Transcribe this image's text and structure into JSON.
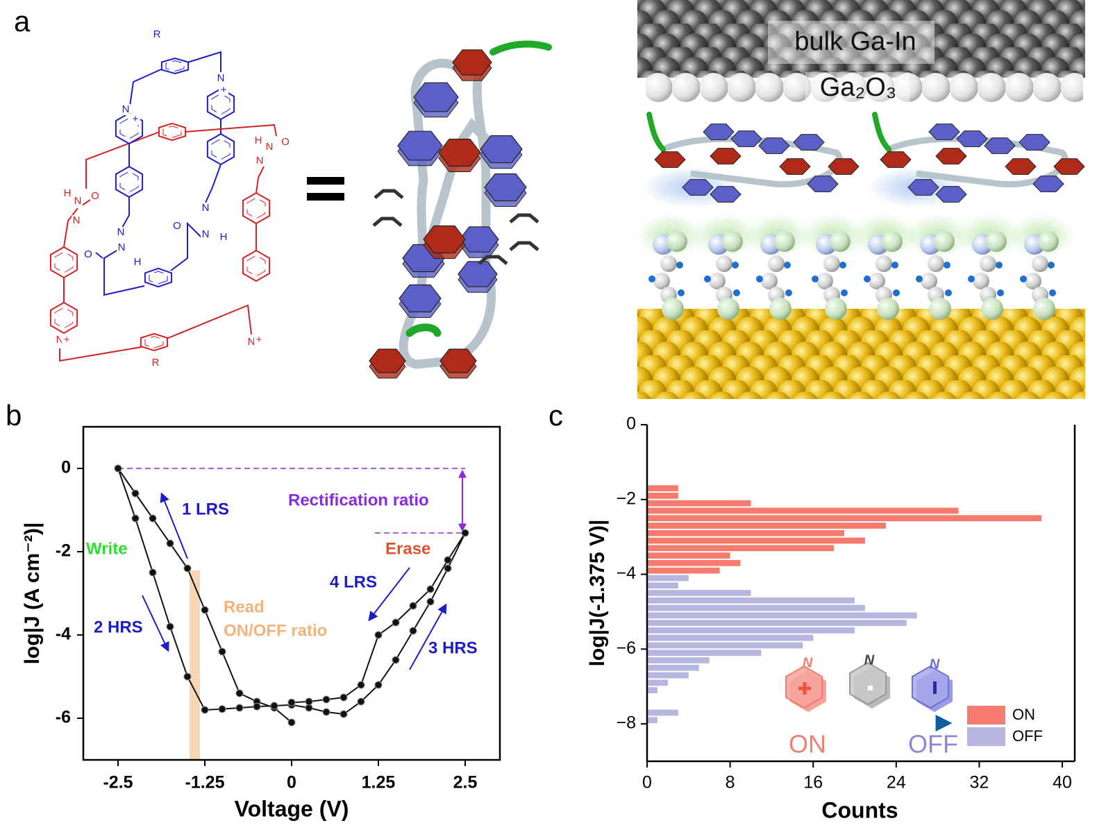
{
  "panel_labels": [
    "a",
    "b",
    "c"
  ],
  "panel_a": {
    "electrode": "bulk Ga-In",
    "oxide": "Ga₂O₃",
    "structure_labels": [
      "R",
      "N",
      "+",
      "N",
      "+",
      "H",
      "N",
      "O",
      "N",
      "H",
      "N",
      "O",
      "N",
      "N",
      "N",
      "O",
      "N",
      "H",
      "O",
      "N",
      "H",
      "N",
      "+",
      "N",
      "+",
      "R"
    ]
  },
  "chart_data": [
    {
      "type": "line",
      "xlabel": "Voltage (V)",
      "ylabel": "log|J (A cm⁻²)|",
      "xlim": [
        -3,
        3
      ],
      "ylim": [
        -7,
        1
      ],
      "xticks": [
        -2.5,
        -1.25,
        0,
        1.25,
        2.5
      ],
      "yticks": [
        -6,
        -4,
        -2,
        0
      ],
      "x": [
        0,
        -0.25,
        -0.5,
        -0.75,
        -1,
        -1.25,
        -1.5,
        -1.75,
        -2,
        -2.25,
        -2.5,
        -2.25,
        -2,
        -1.75,
        -1.5,
        -1.25,
        -1,
        -0.75,
        -0.5,
        -0.25,
        0,
        0.25,
        0.5,
        0.75,
        1,
        1.25,
        1.5,
        1.75,
        2,
        2.25,
        2.5,
        2.25,
        2,
        1.75,
        1.5,
        1.25,
        1,
        0.75,
        0.5,
        0.25,
        0
      ],
      "series": [
        {
          "color": "#111111",
          "values": [
            -6.1,
            -5.75,
            -5.6,
            -5.4,
            -4.4,
            -3.4,
            -2.4,
            -1.8,
            -1.2,
            -0.6,
            0,
            -1.2,
            -2.5,
            -3.8,
            -5.0,
            -5.8,
            -5.78,
            -5.75,
            -5.72,
            -5.7,
            -5.68,
            -5.75,
            -5.85,
            -5.9,
            -5.6,
            -5.2,
            -4.6,
            -3.9,
            -3.2,
            -2.4,
            -1.55,
            -2.2,
            -2.9,
            -3.3,
            -3.7,
            -4.0,
            -5.2,
            -5.5,
            -5.55,
            -5.6,
            -5.62
          ]
        }
      ],
      "annotations": [
        {
          "text": "1 LRS",
          "color": "#1c1cc8"
        },
        {
          "text": "2 HRS",
          "color": "#1c1cc8"
        },
        {
          "text": "3 HRS",
          "color": "#1c1cc8"
        },
        {
          "text": "4 LRS",
          "color": "#1c1cc8"
        },
        {
          "text": "Write",
          "color": "#2ee02e"
        },
        {
          "text": "Erase",
          "color": "#e0522e"
        },
        {
          "text": "Rectification ratio",
          "color": "#8a2be2"
        },
        {
          "text": "Read",
          "color": "#f2b27a"
        },
        {
          "text": "ON/OFF ratio",
          "color": "#f2b27a"
        }
      ]
    },
    {
      "type": "histogram",
      "orientation": "horizontal",
      "xlabel": "Counts",
      "ylabel": "log|J(-1.375 V)|",
      "xlim": [
        0,
        41
      ],
      "ylim": [
        -9,
        0
      ],
      "xticks": [
        0,
        8,
        16,
        24,
        32,
        40
      ],
      "yticks": [
        {
          "value": -8,
          "label": "−8"
        },
        {
          "value": -6,
          "label": "−6"
        },
        {
          "value": -4,
          "label": "−4"
        },
        {
          "value": -2,
          "label": "−2"
        },
        0
      ],
      "bins": [
        -8,
        -7.8,
        -7.6,
        -7.4,
        -7.2,
        -7,
        -6.8,
        -6.6,
        -6.4,
        -6.2,
        -6,
        -5.8,
        -5.6,
        -5.4,
        -5.2,
        -5,
        -4.8,
        -4.6,
        -4.4,
        -4.2,
        -4,
        -3.8,
        -3.6,
        -3.4,
        -3.2,
        -3,
        -2.8,
        -2.6,
        -2.4,
        -2.2,
        -2,
        -1.8,
        -1.6
      ],
      "series": [
        {
          "name": "ON",
          "color": "#f47b6e",
          "values": [
            0,
            0,
            0,
            0,
            0,
            0,
            0,
            0,
            0,
            0,
            0,
            0,
            0,
            0,
            0,
            0,
            0,
            0,
            0,
            0,
            7,
            9,
            8,
            18,
            21,
            19,
            23,
            38,
            30,
            10,
            3,
            3
          ]
        },
        {
          "name": "OFF",
          "color": "#b8b6e0",
          "values": [
            1,
            3,
            0,
            0,
            1,
            2,
            4,
            5,
            6,
            11,
            15,
            16,
            20,
            25,
            26,
            21,
            20,
            10,
            3,
            4,
            0,
            0,
            0,
            0,
            0,
            0,
            0,
            0,
            0,
            0,
            0,
            0
          ]
        }
      ],
      "legend": "lower right",
      "inset_labels": [
        "N",
        "N",
        "N",
        "ON",
        "OFF"
      ]
    }
  ]
}
